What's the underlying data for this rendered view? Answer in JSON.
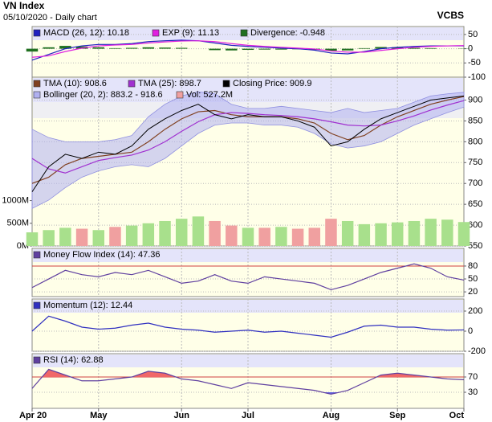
{
  "title": "VN Index",
  "subtitle": "05/10/2020 - Daily chart",
  "brand": "VCBS",
  "chart_data": [
    {
      "type": "line",
      "ylim": [
        -100,
        78
      ],
      "yticks": [
        50,
        0,
        -50,
        -100
      ],
      "grid": true,
      "series": [
        {
          "name": "MACD (26, 12): 10.18",
          "color": "#2020c0",
          "style": "line",
          "values": [
            -40,
            -20,
            0,
            10,
            15,
            15,
            18,
            25,
            28,
            30,
            28,
            20,
            12,
            8,
            5,
            2,
            0,
            -5,
            -15,
            -18,
            -10,
            0,
            5,
            8,
            10,
            10,
            10.18
          ]
        },
        {
          "name": "EXP (9): 11.13",
          "color": "#e020e0",
          "style": "line",
          "values": [
            -30,
            -25,
            -10,
            2,
            10,
            13,
            15,
            20,
            24,
            27,
            28,
            25,
            18,
            12,
            8,
            5,
            2,
            -1,
            -8,
            -12,
            -12,
            -6,
            0,
            5,
            8,
            10,
            11.13
          ]
        },
        {
          "name": "Divergence: -0.948",
          "color": "#207020",
          "style": "bar",
          "values": [
            -10,
            5,
            10,
            8,
            5,
            2,
            3,
            5,
            4,
            3,
            0,
            -5,
            -6,
            -4,
            -3,
            -3,
            -2,
            -4,
            -7,
            -6,
            2,
            6,
            5,
            3,
            2,
            0,
            -0.948
          ]
        }
      ]
    },
    {
      "type": "line",
      "ylim": [
        550,
        955
      ],
      "yticks": [
        900,
        850,
        800,
        750,
        700,
        650,
        600,
        550
      ],
      "y2lim": [
        0,
        3720
      ],
      "y2ticks": [
        {
          "value": 0,
          "label": "0M"
        },
        {
          "value": 500,
          "label": "500M"
        },
        {
          "value": 1000,
          "label": "1000M"
        }
      ],
      "grid": true,
      "series": [
        {
          "name": "TMA (10): 908.6",
          "color": "#804020",
          "style": "line",
          "values": [
            700,
            715,
            745,
            760,
            765,
            770,
            775,
            800,
            830,
            855,
            872,
            875,
            865,
            860,
            860,
            860,
            855,
            845,
            820,
            805,
            815,
            840,
            860,
            875,
            890,
            900,
            908.6
          ]
        },
        {
          "name": "TMA (25): 898.7",
          "color": "#a030d0",
          "style": "line",
          "values": [
            760,
            735,
            725,
            740,
            755,
            762,
            768,
            780,
            800,
            825,
            848,
            865,
            870,
            868,
            865,
            863,
            860,
            855,
            848,
            840,
            838,
            840,
            850,
            862,
            876,
            888,
            898.7
          ]
        },
        {
          "name": "Closing Price: 909.9",
          "color": "#000000",
          "style": "line",
          "values": [
            680,
            740,
            770,
            760,
            775,
            770,
            790,
            830,
            855,
            875,
            890,
            865,
            855,
            865,
            860,
            860,
            850,
            835,
            790,
            800,
            830,
            855,
            870,
            885,
            900,
            905,
            909.9
          ]
        },
        {
          "name": "Bollinger (20, 2): 883.2 - 918.6",
          "color": "#b0b0f0",
          "style": "band",
          "values": [
            830,
            810,
            800,
            800,
            800,
            805,
            815,
            860,
            890,
            910,
            920,
            915,
            890,
            880,
            880,
            885,
            880,
            875,
            870,
            880,
            870,
            875,
            880,
            895,
            910,
            915,
            918.6
          ],
          "low": [
            640,
            660,
            690,
            715,
            730,
            740,
            745,
            740,
            760,
            790,
            820,
            840,
            845,
            845,
            840,
            840,
            835,
            820,
            795,
            785,
            790,
            800,
            820,
            840,
            855,
            870,
            883.2
          ]
        },
        {
          "name": "Vol: 527.2M",
          "color": "#f0a0a0",
          "style": "bar",
          "axis": "y2",
          "values": [
            300,
            350,
            400,
            380,
            350,
            420,
            450,
            500,
            550,
            600,
            650,
            550,
            450,
            400,
            400,
            420,
            380,
            400,
            600,
            550,
            480,
            500,
            520,
            550,
            600,
            580,
            527.2
          ],
          "colors": [
            "#a8e08c",
            "#a8e08c",
            "#a8e08c",
            "#f0a0a0",
            "#a8e08c",
            "#f0a0a0",
            "#a8e08c",
            "#a8e08c",
            "#a8e08c",
            "#a8e08c",
            "#a8e08c",
            "#f0a0a0",
            "#f0a0a0",
            "#a8e08c",
            "#f0a0a0",
            "#a8e08c",
            "#f0a0a0",
            "#f0a0a0",
            "#f0a0a0",
            "#a8e08c",
            "#a8e08c",
            "#a8e08c",
            "#a8e08c",
            "#a8e08c",
            "#a8e08c",
            "#a8e08c",
            "#a8e08c"
          ]
        }
      ]
    },
    {
      "type": "line",
      "ylim": [
        9,
        121
      ],
      "yticks": [
        80,
        50,
        20
      ],
      "ref_lines": [
        80
      ],
      "grid": true,
      "series": [
        {
          "name": "Money Flow Index (14): 47.36",
          "color": "#6040a0",
          "style": "line",
          "values": [
            30,
            50,
            70,
            60,
            55,
            65,
            60,
            70,
            55,
            40,
            45,
            60,
            45,
            40,
            55,
            50,
            45,
            40,
            25,
            35,
            50,
            65,
            75,
            85,
            75,
            55,
            47.36
          ]
        }
      ]
    },
    {
      "type": "line",
      "ylim": [
        -200,
        320
      ],
      "yticks": [
        200,
        0,
        -200
      ],
      "grid": true,
      "series": [
        {
          "name": "Momentum (12): 12.44",
          "color": "#3030c0",
          "style": "line",
          "values": [
            0,
            150,
            100,
            40,
            20,
            30,
            60,
            80,
            40,
            20,
            10,
            -10,
            0,
            10,
            -10,
            0,
            -20,
            -40,
            -60,
            -10,
            50,
            60,
            40,
            40,
            20,
            10,
            12.44
          ]
        }
      ]
    },
    {
      "type": "line",
      "ylim": [
        -12,
        131
      ],
      "yticks": [
        70,
        30
      ],
      "ref_lines": [
        70
      ],
      "grid": true,
      "fill_above": {
        "value": 70,
        "color": "#f06868"
      },
      "fill_below": {
        "value": 30,
        "color": "#6060e0"
      },
      "categories": [
        "Apr 20",
        null,
        null,
        null,
        "May",
        null,
        null,
        null,
        null,
        "Jun",
        null,
        null,
        null,
        "Jul",
        null,
        null,
        null,
        null,
        "Aug",
        null,
        null,
        null,
        "Sep",
        null,
        null,
        null,
        "Oct"
      ],
      "series": [
        {
          "name": "RSI (14): 62.88",
          "color": "#6040a0",
          "style": "line",
          "values": [
            40,
            90,
            75,
            60,
            60,
            65,
            70,
            85,
            80,
            65,
            60,
            50,
            40,
            55,
            50,
            45,
            40,
            35,
            25,
            35,
            55,
            75,
            80,
            75,
            70,
            65,
            62.88
          ]
        }
      ]
    }
  ]
}
